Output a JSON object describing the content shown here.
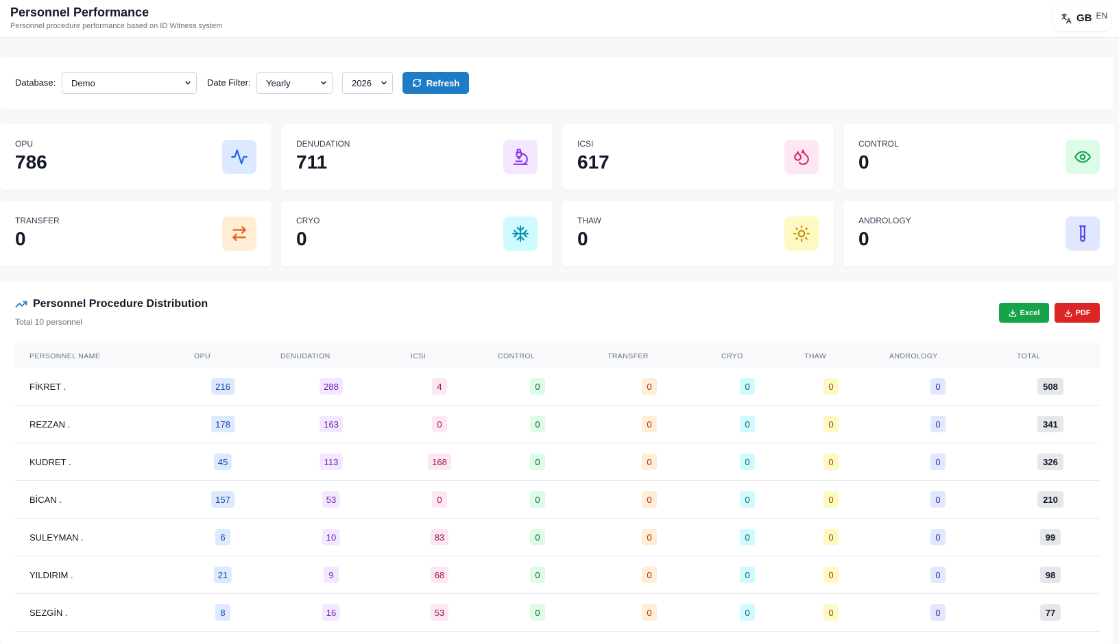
{
  "header": {
    "title": "Personnel Performance",
    "subtitle": "Personnel procedure performance based on ID Witness system",
    "lang_code": "GB",
    "lang_sub": "EN"
  },
  "filters": {
    "database_label": "Database:",
    "database_value": "Demo",
    "date_filter_label": "Date Filter:",
    "date_filter_value": "Yearly",
    "year_value": "2026",
    "refresh_label": "Refresh"
  },
  "stats": [
    {
      "label": "OPU",
      "value": "786",
      "icon": "activity-icon",
      "color": "#2563eb",
      "bg": "#dbeafe"
    },
    {
      "label": "DENUDATION",
      "value": "711",
      "icon": "microscope-icon",
      "color": "#9333ea",
      "bg": "#f3e8ff"
    },
    {
      "label": "ICSI",
      "value": "617",
      "icon": "droplets-icon",
      "color": "#db2777",
      "bg": "#fce7f3"
    },
    {
      "label": "CONTROL",
      "value": "0",
      "icon": "eye-icon",
      "color": "#16a34a",
      "bg": "#dcfce7"
    },
    {
      "label": "TRANSFER",
      "value": "0",
      "icon": "arrows-exchange-icon",
      "color": "#ea580c",
      "bg": "#ffedd5"
    },
    {
      "label": "CRYO",
      "value": "0",
      "icon": "snowflake-icon",
      "color": "#0891b2",
      "bg": "#cffafe"
    },
    {
      "label": "THAW",
      "value": "0",
      "icon": "sun-icon",
      "color": "#ca8a04",
      "bg": "#fef9c3"
    },
    {
      "label": "ANDROLOGY",
      "value": "0",
      "icon": "test-tube-icon",
      "color": "#4f46e5",
      "bg": "#e0e7ff"
    }
  ],
  "distribution": {
    "title": "Personnel Procedure Distribution",
    "subtitle": "Total 10 personnel",
    "excel_label": "Excel",
    "pdf_label": "PDF",
    "columns": [
      "PERSONNEL NAME",
      "OPU",
      "DENUDATION",
      "ICSI",
      "CONTROL",
      "TRANSFER",
      "CRYO",
      "THAW",
      "ANDROLOGY",
      "TOTAL"
    ],
    "rows": [
      {
        "name": "FİKRET .",
        "opu": "216",
        "den": "288",
        "icsi": "4",
        "ctrl": "0",
        "trans": "0",
        "cryo": "0",
        "thaw": "0",
        "andr": "0",
        "total": "508"
      },
      {
        "name": "REZZAN .",
        "opu": "178",
        "den": "163",
        "icsi": "0",
        "ctrl": "0",
        "trans": "0",
        "cryo": "0",
        "thaw": "0",
        "andr": "0",
        "total": "341"
      },
      {
        "name": "KUDRET .",
        "opu": "45",
        "den": "113",
        "icsi": "168",
        "ctrl": "0",
        "trans": "0",
        "cryo": "0",
        "thaw": "0",
        "andr": "0",
        "total": "326"
      },
      {
        "name": "BİCAN .",
        "opu": "157",
        "den": "53",
        "icsi": "0",
        "ctrl": "0",
        "trans": "0",
        "cryo": "0",
        "thaw": "0",
        "andr": "0",
        "total": "210"
      },
      {
        "name": "SULEYMAN .",
        "opu": "6",
        "den": "10",
        "icsi": "83",
        "ctrl": "0",
        "trans": "0",
        "cryo": "0",
        "thaw": "0",
        "andr": "0",
        "total": "99"
      },
      {
        "name": "YILDIRIM .",
        "opu": "21",
        "den": "9",
        "icsi": "68",
        "ctrl": "0",
        "trans": "0",
        "cryo": "0",
        "thaw": "0",
        "andr": "0",
        "total": "98"
      },
      {
        "name": "SEZGİN .",
        "opu": "8",
        "den": "16",
        "icsi": "53",
        "ctrl": "0",
        "trans": "0",
        "cryo": "0",
        "thaw": "0",
        "andr": "0",
        "total": "77"
      }
    ]
  }
}
